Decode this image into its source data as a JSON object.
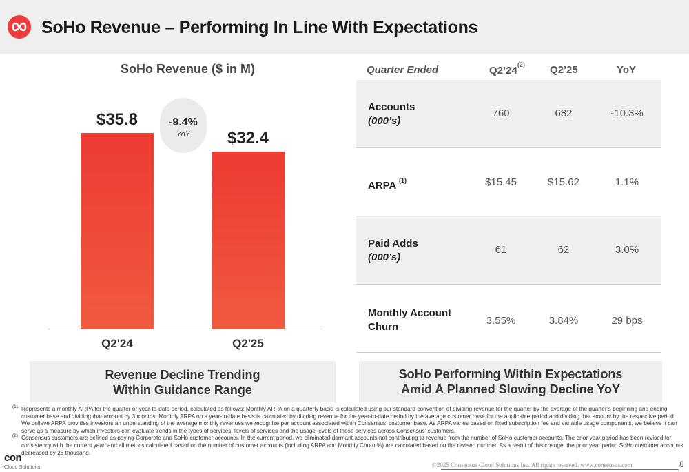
{
  "header": {
    "title": "SoHo Revenue – Performing In Line With Expectations",
    "logo_icon": "infinity-logo-icon",
    "accent_color": "#ee3b3b"
  },
  "chart_data": {
    "type": "bar",
    "title": "SoHo Revenue ($ in M)",
    "categories": [
      "Q2'24",
      "Q2'25"
    ],
    "values": [
      35.8,
      32.4
    ],
    "value_labels": [
      "$35.8",
      "$32.4"
    ],
    "xlabel": "",
    "ylabel": "",
    "ylim": [
      0,
      45
    ],
    "grid": false,
    "bar_color": "#ee3b3b",
    "annotation": {
      "value": "-9.4%",
      "label": "YoY"
    }
  },
  "callouts": {
    "left": [
      "Revenue Decline Trending",
      "Within Guidance Range"
    ],
    "right": [
      "SoHo Performing Within Expectations",
      "Amid A Planned Slowing Decline YoY"
    ]
  },
  "table": {
    "headers": {
      "quarter": "Quarter Ended",
      "q224": "Q2’24",
      "q224_note": "(2)",
      "q225": "Q2’25",
      "yoy": "YoY"
    },
    "rows": [
      {
        "label": "Accounts",
        "sublabel": "(000’s)",
        "q224": "760",
        "q225": "682",
        "yoy": "-10.3%"
      },
      {
        "label": "ARPA",
        "note": "(1)",
        "q224": "$15.45",
        "q225": "$15.62",
        "yoy": "1.1%"
      },
      {
        "label": "Paid Adds",
        "sublabel": "(000’s)",
        "q224": "61",
        "q225": "62",
        "yoy": "3.0%"
      },
      {
        "label": "Monthly Account",
        "sublabel": "Churn",
        "q224": "3.55%",
        "q225": "3.84%",
        "yoy": "29 bps"
      }
    ]
  },
  "footnotes": [
    {
      "mark": "(1)",
      "text": "Represents a monthly ARPA for the quarter or year-to-date period, calculated as follows: Monthly ARPA on a quarterly basis is calculated using our standard convention of dividing revenue for the quarter by the average of the quarter’s beginning and ending customer base and dividing that amount by 3 months. Monthly ARPA on a year-to-date basis is calculated by dividing revenue for the year-to-date period by the average customer base for the applicable period and dividing that amount by the respective period. We believe ARPA provides investors an understanding of the average monthly revenues we recognize per account associated within Consensus’ customer base. As ARPA varies based on fixed subscription fee and variable usage components, we believe it can serve as a measure by which investors can evaluate trends in the types of services, levels of services and the usage levels of those services across Consensus’ customers."
    },
    {
      "mark": "(2)",
      "text": "Consensus customers are defined as paying Corporate and SoHo customer accounts. In the current period, we eliminated dormant accounts not contributing to revenue from the number of SoHo customer accounts. The prior year period has been revised for consistency with the current year, and all metrics calculated based on the number of customer accounts (including ARPA and Monthly Churn %) are calculated based on the revised number. As a result of this change, the prior year period SoHo customer accounts decreased by 26 thousand."
    }
  ],
  "footer": {
    "logo_word": "con",
    "logo_sub": "Cloud Solutions",
    "copyright": "©2025 Consensus Cloud Solutions Inc. All rights reserved. www.consensus.com",
    "page": "8"
  }
}
